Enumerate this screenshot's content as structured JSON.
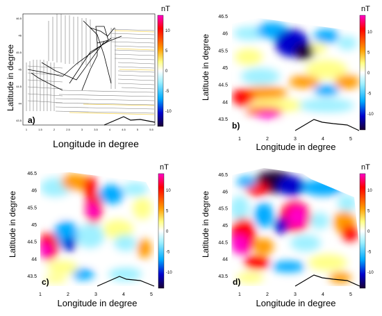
{
  "figure": {
    "ylabel": "Latitude in degree",
    "xlabel": "Longitude in degree",
    "colorbar_title": "nT",
    "colorbar_ticks": [
      "10",
      "5",
      "0",
      "-5",
      "-10"
    ],
    "colorbar_colors": [
      "#ff00c8",
      "#ff0000",
      "#ff9a00",
      "#ffff88",
      "#ffffff",
      "#9ff0ff",
      "#00aaff",
      "#0000cc",
      "#1a0033"
    ],
    "panels": [
      {
        "label": "a)",
        "type": "survey-lines",
        "yticks": [
          "46.5",
          "46",
          "45.5",
          "45",
          "44.5",
          "44",
          "43.5"
        ],
        "xticks": [
          "1",
          "1.5",
          "2",
          "2.5",
          "3",
          "3.5",
          "4",
          "4.5",
          "5",
          "5.5"
        ]
      },
      {
        "label": "b)",
        "type": "magnetic-anomaly-map",
        "yticks": [
          "46.5",
          "46",
          "45.5",
          "45",
          "44.5",
          "44",
          "43.5"
        ],
        "xticks": [
          "1",
          "2",
          "3",
          "4",
          "5"
        ]
      },
      {
        "label": "c)",
        "type": "magnetic-anomaly-map",
        "yticks": [
          "46.5",
          "46",
          "45.5",
          "45",
          "44.5",
          "44",
          "43.5"
        ],
        "xticks": [
          "1",
          "2",
          "3",
          "4",
          "5"
        ]
      },
      {
        "label": "d)",
        "type": "magnetic-anomaly-map",
        "yticks": [
          "46.5",
          "46",
          "45.5",
          "45",
          "44.5",
          "44",
          "43.5"
        ],
        "xticks": [
          "1",
          "2",
          "3",
          "4",
          "5"
        ]
      }
    ]
  }
}
